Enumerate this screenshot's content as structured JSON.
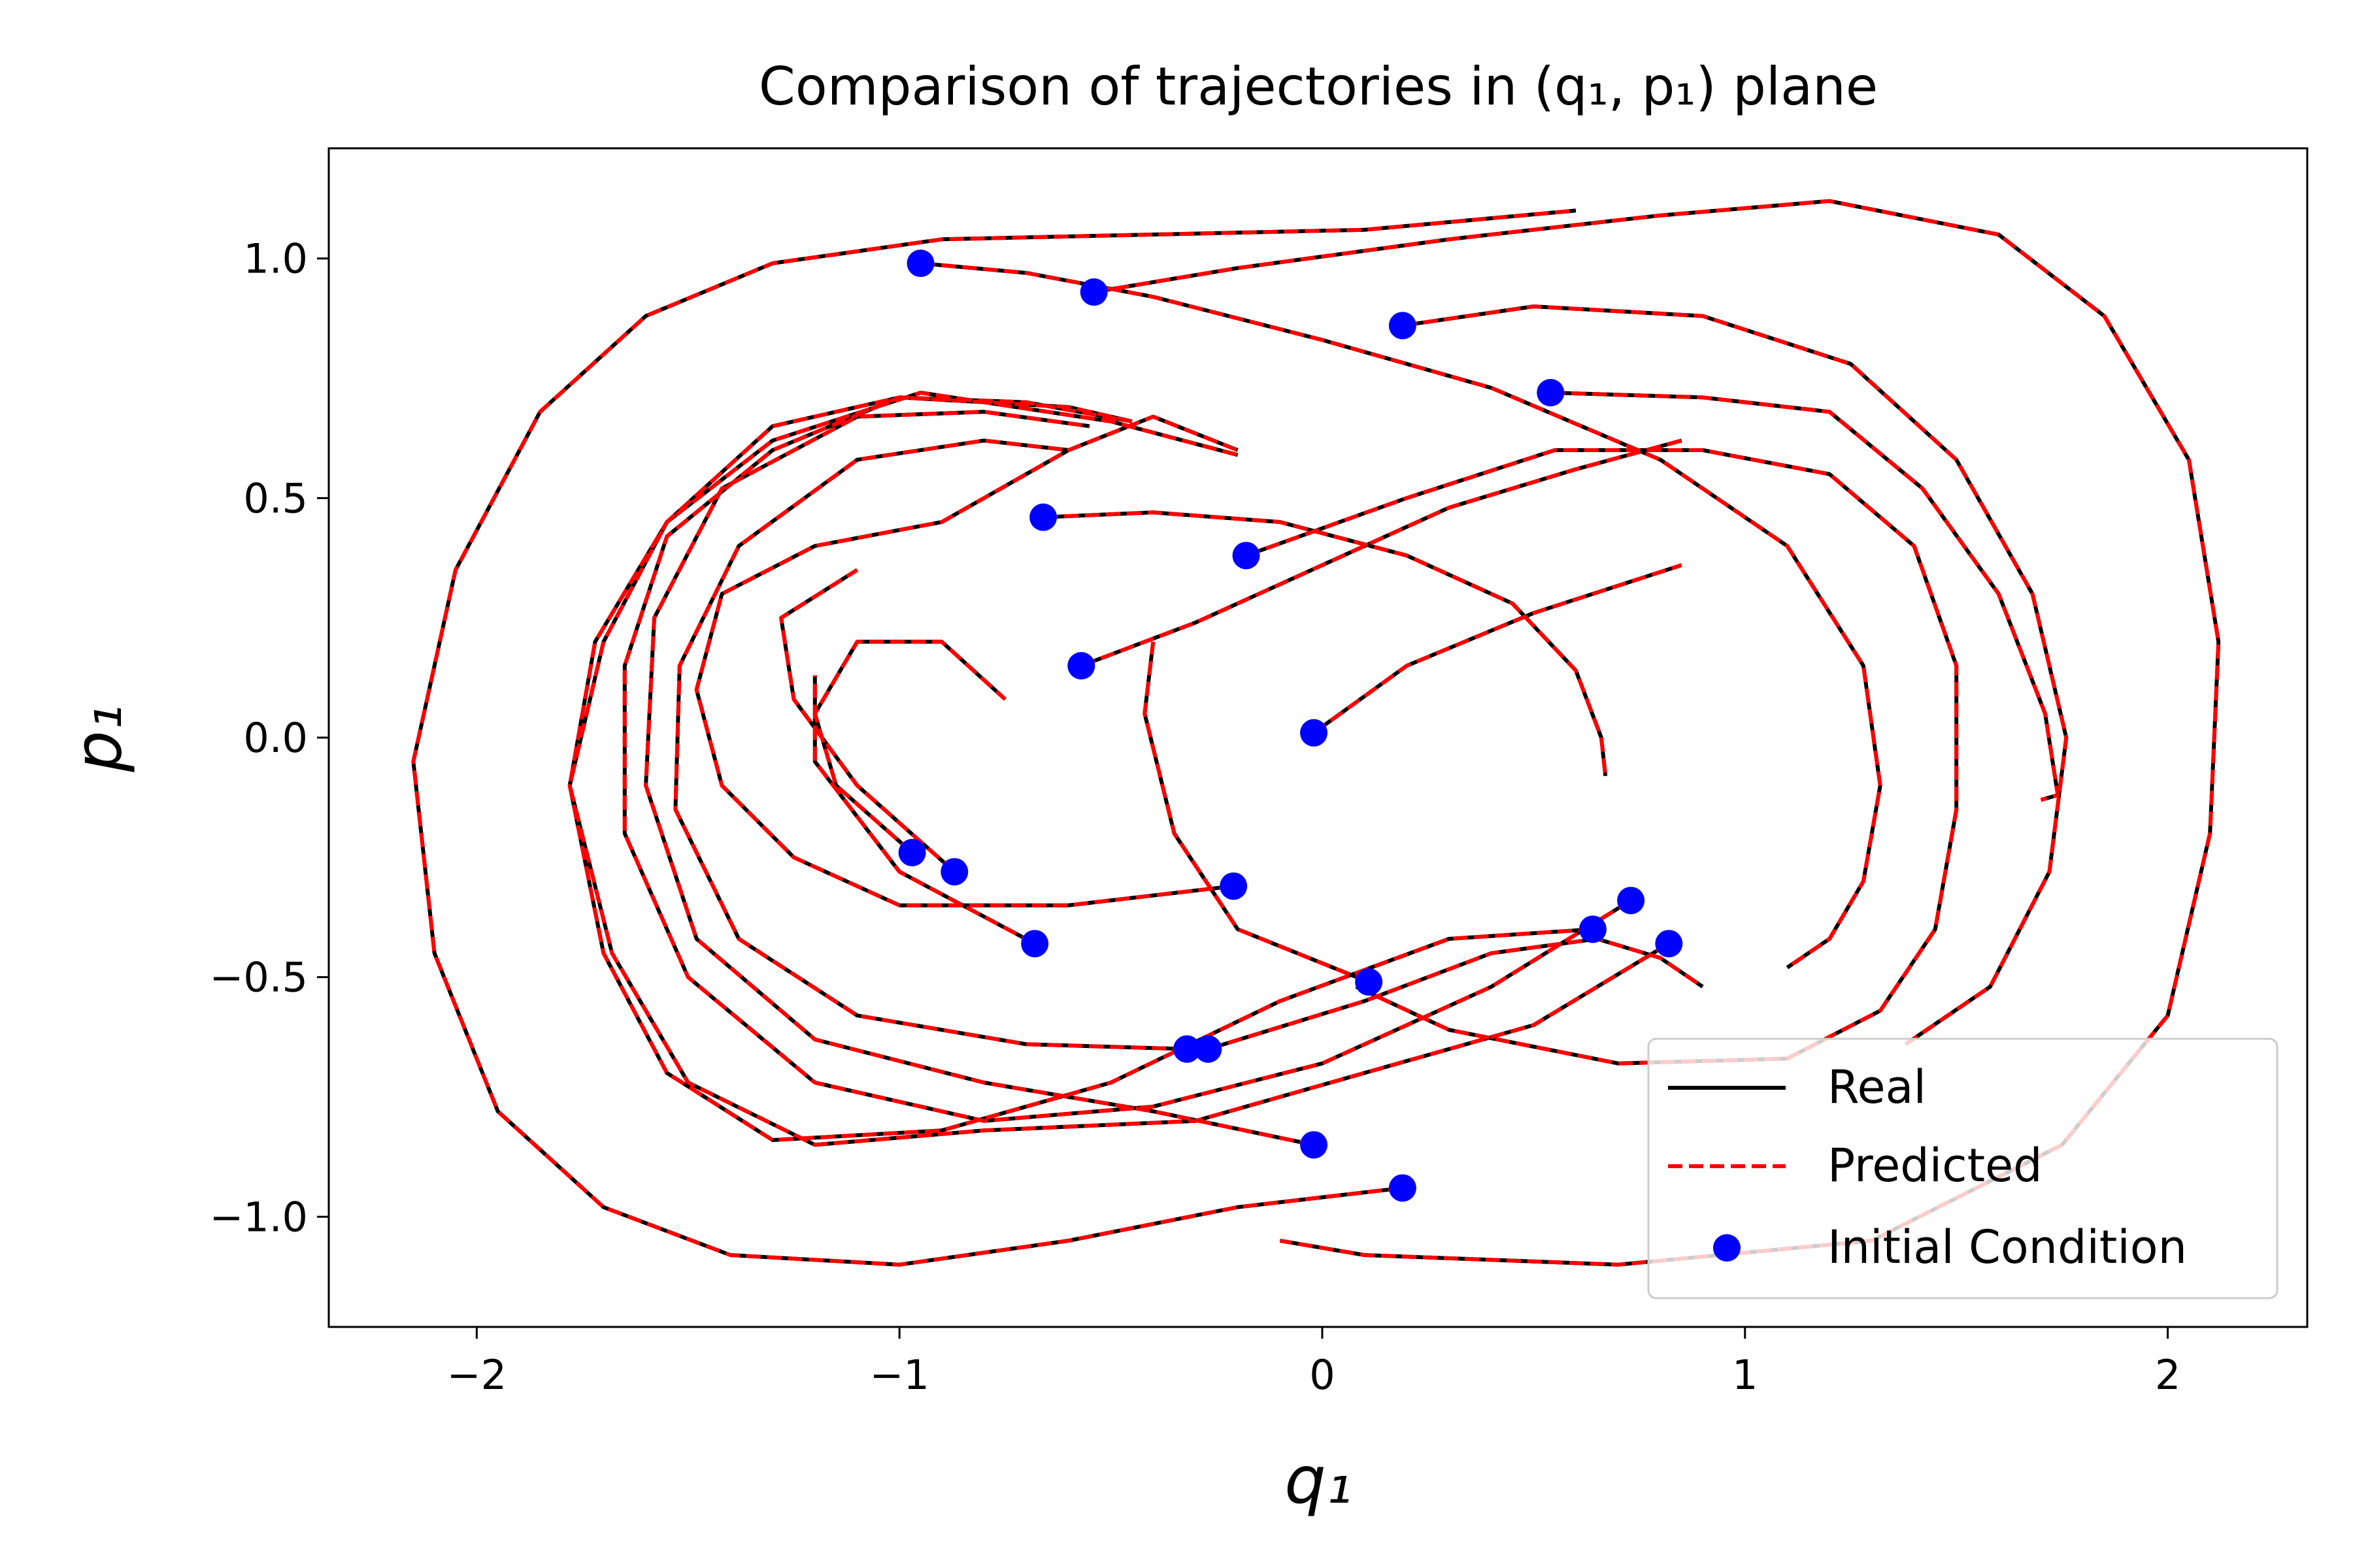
{
  "chart_data": {
    "type": "line",
    "title": "Comparison of trajectories in (q₁, p₁) plane",
    "xlabel": "q₁",
    "ylabel": "p₁",
    "xlim": [
      -2.35,
      2.33
    ],
    "ylim": [
      -1.23,
      1.23
    ],
    "xticks": [
      -2,
      -1,
      0,
      1,
      2
    ],
    "xtick_labels": [
      "−2",
      "−1",
      "0",
      "1",
      "2"
    ],
    "yticks": [
      1.0,
      0.5,
      0.0,
      -0.5,
      -1.0
    ],
    "ytick_labels": [
      "1.0",
      "0.5",
      "0.0",
      "−0.5",
      "−1.0"
    ],
    "grid": false,
    "legend": {
      "placement": "lower right",
      "entries": [
        {
          "label": "Real",
          "style": "solid",
          "color": "#000000"
        },
        {
          "label": "Predicted",
          "style": "dashed",
          "color": "#ff0000"
        },
        {
          "label": "Initial Condition",
          "style": "marker",
          "color": "#0000ff"
        }
      ]
    },
    "colors": {
      "real": "#000000",
      "predicted": "#ff0000",
      "initial": "#0000ff"
    },
    "trajectories": [
      {
        "initial": [
          -0.95,
          0.99
        ],
        "points": [
          [
            -0.95,
            0.99
          ],
          [
            -0.7,
            0.97
          ],
          [
            -0.4,
            0.92
          ],
          [
            0.0,
            0.83
          ],
          [
            0.4,
            0.73
          ],
          [
            0.8,
            0.58
          ],
          [
            1.1,
            0.4
          ],
          [
            1.28,
            0.15
          ],
          [
            1.32,
            -0.1
          ],
          [
            1.28,
            -0.3
          ],
          [
            1.2,
            -0.42
          ],
          [
            1.1,
            -0.48
          ]
        ]
      },
      {
        "initial": [
          -0.54,
          0.93
        ],
        "points": [
          [
            -0.54,
            0.93
          ],
          [
            -0.2,
            0.98
          ],
          [
            0.3,
            1.04
          ],
          [
            0.8,
            1.09
          ],
          [
            1.2,
            1.12
          ],
          [
            1.6,
            1.05
          ],
          [
            1.85,
            0.88
          ],
          [
            2.05,
            0.58
          ],
          [
            2.12,
            0.2
          ],
          [
            2.1,
            -0.2
          ],
          [
            2.0,
            -0.58
          ],
          [
            1.75,
            -0.85
          ],
          [
            1.3,
            -1.05
          ],
          [
            0.7,
            -1.1
          ],
          [
            0.1,
            -1.08
          ],
          [
            -0.1,
            -1.05
          ]
        ]
      },
      {
        "initial": [
          0.19,
          0.86
        ],
        "points": [
          [
            0.19,
            0.86
          ],
          [
            0.5,
            0.9
          ],
          [
            0.9,
            0.88
          ],
          [
            1.25,
            0.78
          ],
          [
            1.5,
            0.58
          ],
          [
            1.68,
            0.3
          ],
          [
            1.76,
            0.0
          ],
          [
            1.72,
            -0.28
          ],
          [
            1.58,
            -0.52
          ],
          [
            1.38,
            -0.64
          ]
        ]
      },
      {
        "initial": [
          0.54,
          0.72
        ],
        "points": [
          [
            0.54,
            0.72
          ],
          [
            0.9,
            0.71
          ],
          [
            1.2,
            0.68
          ],
          [
            1.42,
            0.52
          ],
          [
            1.6,
            0.3
          ],
          [
            1.71,
            0.05
          ],
          [
            1.74,
            -0.12
          ],
          [
            1.7,
            -0.13
          ]
        ]
      },
      {
        "initial": [
          -0.66,
          0.46
        ],
        "points": [
          [
            -0.66,
            0.46
          ],
          [
            -0.4,
            0.47
          ],
          [
            -0.1,
            0.45
          ],
          [
            0.2,
            0.38
          ],
          [
            0.45,
            0.28
          ],
          [
            0.6,
            0.14
          ],
          [
            0.66,
            0.0
          ],
          [
            0.67,
            -0.08
          ]
        ]
      },
      {
        "initial": [
          -0.18,
          0.38
        ],
        "points": [
          [
            -0.18,
            0.38
          ],
          [
            0.2,
            0.5
          ],
          [
            0.55,
            0.6
          ],
          [
            0.9,
            0.6
          ],
          [
            1.2,
            0.55
          ],
          [
            1.4,
            0.4
          ],
          [
            1.5,
            0.15
          ],
          [
            1.5,
            -0.15
          ],
          [
            1.45,
            -0.4
          ],
          [
            1.32,
            -0.57
          ],
          [
            1.1,
            -0.67
          ],
          [
            0.7,
            -0.68
          ],
          [
            0.3,
            -0.61
          ],
          [
            0.08,
            -0.52
          ]
        ]
      },
      {
        "initial": [
          -0.57,
          0.15
        ],
        "points": [
          [
            -0.57,
            0.15
          ],
          [
            -0.3,
            0.24
          ],
          [
            0.0,
            0.36
          ],
          [
            0.3,
            0.48
          ],
          [
            0.6,
            0.56
          ],
          [
            0.85,
            0.62
          ]
        ]
      },
      {
        "initial": [
          -0.02,
          0.01
        ],
        "points": [
          [
            -0.02,
            0.01
          ],
          [
            0.2,
            0.15
          ],
          [
            0.5,
            0.26
          ],
          [
            0.85,
            0.36
          ]
        ]
      },
      {
        "initial": [
          -0.97,
          -0.24
        ],
        "points": [
          [
            -0.97,
            -0.24
          ],
          [
            -1.15,
            -0.1
          ],
          [
            -1.2,
            0.05
          ],
          [
            -1.1,
            0.2
          ],
          [
            -0.9,
            0.2
          ],
          [
            -0.75,
            0.08
          ]
        ]
      },
      {
        "initial": [
          -0.87,
          -0.28
        ],
        "points": [
          [
            -0.87,
            -0.28
          ],
          [
            -1.1,
            -0.1
          ],
          [
            -1.25,
            0.08
          ],
          [
            -1.28,
            0.25
          ],
          [
            -1.1,
            0.35
          ]
        ]
      },
      {
        "initial": [
          -0.68,
          -0.43
        ],
        "points": [
          [
            -0.68,
            -0.43
          ],
          [
            -1.0,
            -0.28
          ],
          [
            -1.2,
            -0.05
          ],
          [
            -1.2,
            0.13
          ]
        ]
      },
      {
        "initial": [
          -0.21,
          -0.31
        ],
        "points": [
          [
            -0.21,
            -0.31
          ],
          [
            -0.6,
            -0.35
          ],
          [
            -1.0,
            -0.35
          ],
          [
            -1.25,
            -0.25
          ],
          [
            -1.42,
            -0.1
          ],
          [
            -1.48,
            0.1
          ],
          [
            -1.42,
            0.3
          ],
          [
            -1.2,
            0.4
          ],
          [
            -0.9,
            0.45
          ],
          [
            -0.6,
            0.6
          ],
          [
            -0.4,
            0.67
          ],
          [
            -0.2,
            0.6
          ]
        ]
      },
      {
        "initial": [
          -0.02,
          -0.85
        ],
        "points": [
          [
            -0.02,
            -0.85
          ],
          [
            -0.4,
            -0.78
          ],
          [
            -0.8,
            -0.72
          ],
          [
            -1.2,
            -0.63
          ],
          [
            -1.48,
            -0.42
          ],
          [
            -1.6,
            -0.1
          ],
          [
            -1.58,
            0.25
          ],
          [
            -1.42,
            0.52
          ],
          [
            -1.1,
            0.67
          ],
          [
            -0.8,
            0.68
          ],
          [
            -0.55,
            0.65
          ]
        ]
      },
      {
        "initial": [
          -0.32,
          -0.65
        ],
        "points": [
          [
            -0.32,
            -0.65
          ],
          [
            -0.7,
            -0.64
          ],
          [
            -1.1,
            -0.58
          ],
          [
            -1.38,
            -0.42
          ],
          [
            -1.53,
            -0.15
          ],
          [
            -1.52,
            0.15
          ],
          [
            -1.38,
            0.4
          ],
          [
            -1.1,
            0.58
          ],
          [
            -0.8,
            0.62
          ],
          [
            -0.6,
            0.6
          ]
        ]
      },
      {
        "initial": [
          -0.27,
          -0.65
        ],
        "points": [
          [
            -0.27,
            -0.65
          ],
          [
            0.1,
            -0.55
          ],
          [
            0.4,
            -0.45
          ],
          [
            0.65,
            -0.42
          ],
          [
            0.8,
            -0.46
          ],
          [
            0.9,
            -0.52
          ]
        ]
      },
      {
        "initial": [
          0.64,
          -0.4
        ],
        "points": [
          [
            0.64,
            -0.4
          ],
          [
            0.3,
            -0.42
          ],
          [
            -0.1,
            -0.55
          ],
          [
            -0.5,
            -0.72
          ],
          [
            -0.9,
            -0.82
          ],
          [
            -1.3,
            -0.84
          ],
          [
            -1.55,
            -0.7
          ],
          [
            -1.7,
            -0.45
          ],
          [
            -1.78,
            -0.1
          ],
          [
            -1.7,
            0.2
          ],
          [
            -1.55,
            0.45
          ],
          [
            -1.3,
            0.65
          ],
          [
            -1.0,
            0.71
          ],
          [
            -0.7,
            0.7
          ],
          [
            -0.45,
            0.66
          ]
        ]
      },
      {
        "initial": [
          0.73,
          -0.34
        ],
        "points": [
          [
            0.73,
            -0.34
          ],
          [
            0.4,
            -0.52
          ],
          [
            0.0,
            -0.68
          ],
          [
            -0.4,
            -0.77
          ],
          [
            -0.8,
            -0.8
          ],
          [
            -1.2,
            -0.72
          ],
          [
            -1.5,
            -0.5
          ],
          [
            -1.65,
            -0.2
          ],
          [
            -1.65,
            0.15
          ],
          [
            -1.55,
            0.42
          ],
          [
            -1.3,
            0.6
          ],
          [
            -1.0,
            0.71
          ],
          [
            -0.6,
            0.69
          ],
          [
            -0.45,
            0.66
          ]
        ]
      },
      {
        "initial": [
          0.82,
          -0.43
        ],
        "points": [
          [
            0.82,
            -0.43
          ],
          [
            0.5,
            -0.6
          ],
          [
            0.1,
            -0.7
          ],
          [
            -0.3,
            -0.8
          ],
          [
            -0.8,
            -0.82
          ],
          [
            -1.2,
            -0.85
          ],
          [
            -1.5,
            -0.72
          ],
          [
            -1.68,
            -0.45
          ],
          [
            -1.78,
            -0.1
          ],
          [
            -1.72,
            0.2
          ],
          [
            -1.55,
            0.45
          ],
          [
            -1.3,
            0.62
          ],
          [
            -0.95,
            0.72
          ],
          [
            -0.5,
            0.66
          ],
          [
            -0.2,
            0.59
          ]
        ]
      },
      {
        "initial": [
          0.19,
          -0.94
        ],
        "points": [
          [
            0.19,
            -0.94
          ],
          [
            -0.2,
            -0.98
          ],
          [
            -0.6,
            -1.05
          ],
          [
            -1.0,
            -1.1
          ],
          [
            -1.4,
            -1.08
          ],
          [
            -1.7,
            -0.98
          ],
          [
            -1.95,
            -0.78
          ],
          [
            -2.1,
            -0.45
          ],
          [
            -2.15,
            -0.05
          ],
          [
            -2.05,
            0.35
          ],
          [
            -1.85,
            0.68
          ],
          [
            -1.6,
            0.88
          ],
          [
            -1.3,
            0.99
          ],
          [
            -0.9,
            1.04
          ],
          [
            -0.4,
            1.05
          ],
          [
            0.1,
            1.06
          ],
          [
            0.6,
            1.1
          ]
        ]
      },
      {
        "initial": [
          0.11,
          -0.51
        ],
        "points": [
          [
            0.11,
            -0.51
          ],
          [
            -0.2,
            -0.4
          ],
          [
            -0.35,
            -0.2
          ],
          [
            -0.42,
            0.05
          ],
          [
            -0.4,
            0.2
          ]
        ]
      }
    ]
  }
}
